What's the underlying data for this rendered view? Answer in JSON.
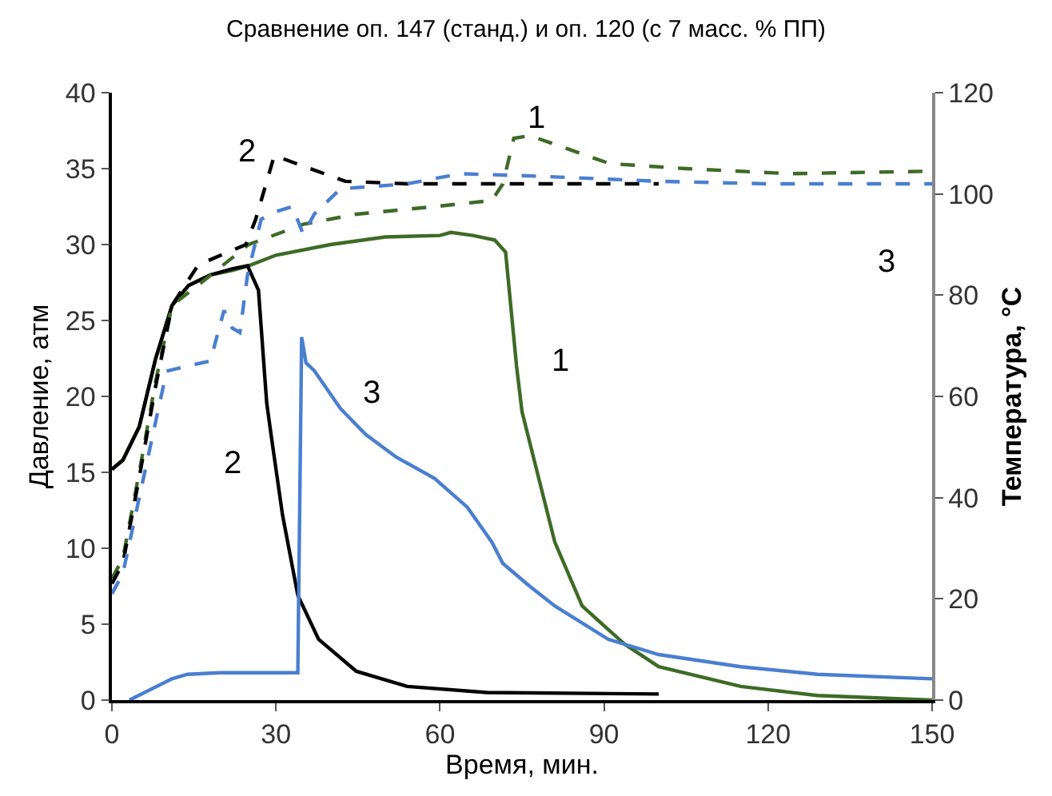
{
  "chart_data": {
    "type": "line",
    "title": "Сравнение оп. 147 (станд.) и оп. 120 (с 7 масс. % ПП)",
    "xlabel": "Время, мин.",
    "ylabel": "Давление, атм",
    "y2label": "Температура, °C",
    "xlim": [
      0,
      150
    ],
    "xticks": [
      0,
      30,
      60,
      90,
      120,
      150
    ],
    "ylim": [
      0,
      40
    ],
    "yticks": [
      0,
      5,
      10,
      15,
      20,
      25,
      30,
      35,
      40
    ],
    "y2lim": [
      0,
      120
    ],
    "y2ticks": [
      0,
      20,
      40,
      60,
      80,
      100,
      120
    ],
    "grid": false,
    "marker": "none",
    "series": [
      {
        "color": "#3d6b26",
        "line_style": "solid",
        "x": [
          0,
          2,
          5,
          8,
          11,
          14,
          18,
          22,
          25,
          30,
          40,
          50,
          60,
          62,
          66,
          70,
          72,
          74,
          75,
          77.3,
          81,
          86,
          93.7,
          100,
          115,
          129,
          150
        ],
        "values": [
          15.2,
          15.8,
          18,
          22.5,
          26,
          27.3,
          28,
          28.3,
          28.6,
          29.3,
          30,
          30.5,
          30.6,
          30.8,
          30.6,
          30.3,
          29.5,
          22,
          19,
          15.7,
          10.4,
          6.2,
          3.7,
          2.2,
          0.9,
          0.3,
          0
        ]
      },
      {
        "color": "#000000",
        "line_style": "solid",
        "x": [
          0,
          2,
          5,
          8,
          11,
          14,
          18,
          22,
          24.8,
          26.8,
          28.3,
          29.1,
          31.2,
          34,
          37.8,
          44.7,
          54,
          68.6,
          100
        ],
        "values": [
          15.2,
          15.8,
          18,
          22.5,
          26,
          27.3,
          28,
          28.4,
          28.6,
          27,
          19.6,
          17.5,
          12.2,
          6.9,
          4,
          1.9,
          0.9,
          0.5,
          0.4
        ]
      },
      {
        "color": "#4a7fd0",
        "line_style": "solid",
        "x": [
          3.2,
          11,
          13.8,
          20,
          25,
          30,
          34,
          34.7,
          35.5,
          37,
          41.8,
          46.4,
          52,
          59,
          65,
          69.5,
          71.5,
          76.4,
          81,
          90.8,
          100,
          115,
          129,
          150
        ],
        "values": [
          0,
          1.4,
          1.7,
          1.8,
          1.8,
          1.8,
          1.8,
          23.9,
          22.2,
          21.7,
          19.2,
          17.5,
          16,
          14.6,
          12.7,
          10.4,
          9,
          7.5,
          6.2,
          4,
          3,
          2.2,
          1.7,
          1.4
        ]
      },
      {
        "axis": "y2",
        "color": "#3d6b26",
        "line_style": "dashed",
        "x": [
          0,
          2,
          5,
          8,
          11,
          15.8,
          25,
          35,
          44.7,
          59,
          69.5,
          71.5,
          73.5,
          76.5,
          91,
          105,
          124,
          150
        ],
        "values": [
          24,
          28,
          45,
          63,
          78,
          82,
          90,
          94,
          96,
          97.5,
          98.7,
          102,
          111,
          111.5,
          106,
          105,
          104,
          104.5
        ]
      },
      {
        "axis": "y2",
        "color": "#000000",
        "line_style": "dashed",
        "x": [
          0,
          2,
          5,
          8,
          11,
          15.8,
          24.5,
          26.3,
          29.7,
          35,
          42.7,
          54,
          70,
          85,
          100
        ],
        "values": [
          23,
          27,
          44,
          62,
          78,
          86,
          90,
          95,
          107.6,
          105.5,
          102.5,
          102,
          102,
          102,
          102
        ]
      },
      {
        "axis": "y2",
        "color": "#4a7fd0",
        "line_style": "dashed",
        "x": [
          0,
          2,
          5,
          10,
          13.8,
          18,
          20.5,
          22,
          23.4,
          24.8,
          27.3,
          30,
          33,
          35,
          37,
          41.8,
          54,
          63.7,
          78,
          100,
          120,
          150
        ],
        "values": [
          21,
          25,
          40,
          65,
          66,
          67,
          77,
          73.5,
          72.6,
          84,
          95,
          96.5,
          97.5,
          92,
          96,
          101,
          102,
          104,
          103.5,
          102.5,
          102,
          102
        ]
      }
    ],
    "annotations": [
      {
        "text": "2",
        "x": 29.7,
        "y": 35.9
      },
      {
        "text": "1",
        "x": 77.6,
        "y": 37.3
      },
      {
        "text": "3",
        "x": 141.6,
        "y": 34
      },
      {
        "text": "1",
        "x": 74,
        "y": 22
      },
      {
        "text": "2",
        "x": 30,
        "y": 15.6
      },
      {
        "text": "3",
        "x": 47.6,
        "y": 17.2
      }
    ]
  }
}
